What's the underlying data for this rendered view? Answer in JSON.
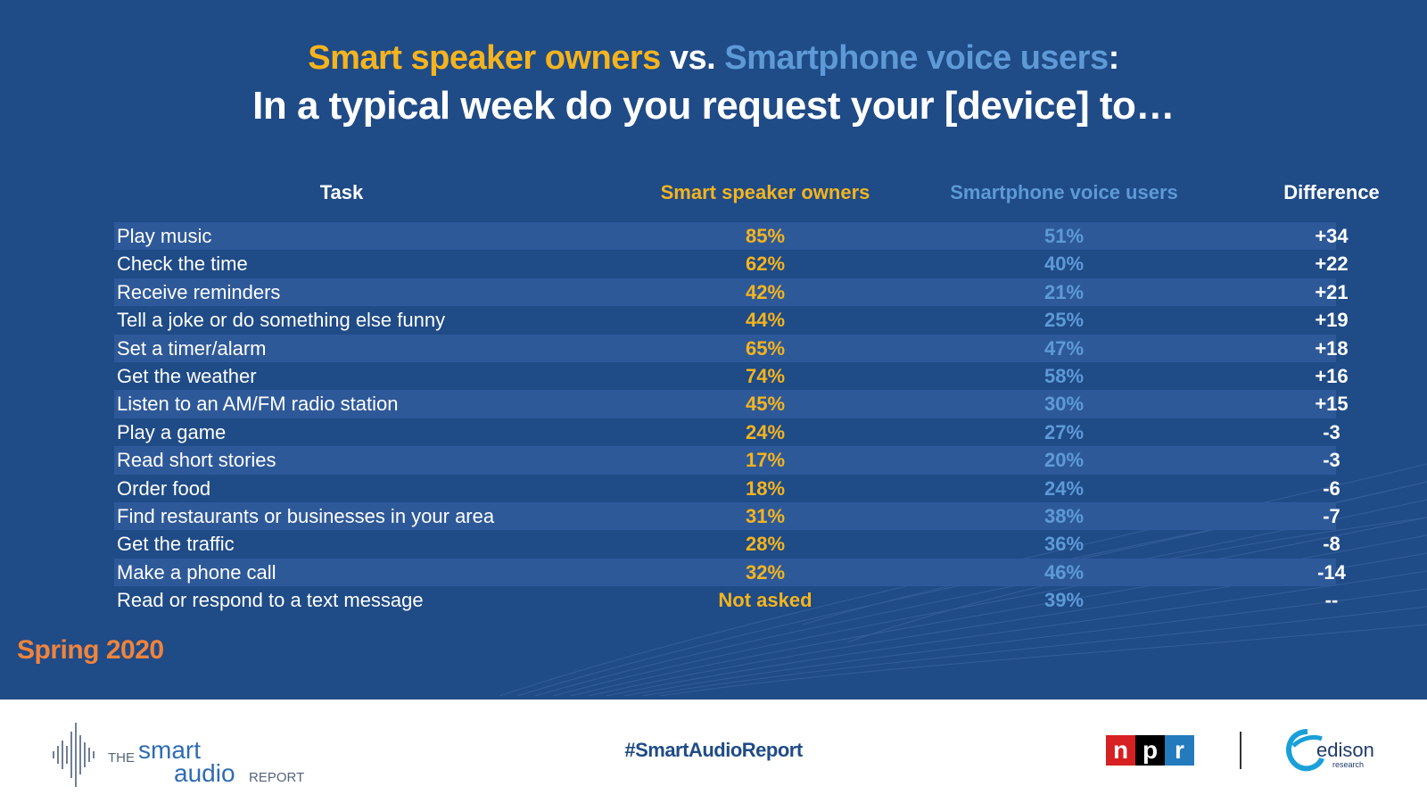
{
  "title": {
    "part1": "Smart speaker owners",
    "part2": " vs. ",
    "part3": "Smartphone voice users",
    "part4": ":",
    "line2": "In a typical week do you request your [device] to…"
  },
  "headers": {
    "task": "Task",
    "smart_speaker": "Smart speaker owners",
    "smartphone": "Smartphone voice users",
    "difference": "Difference"
  },
  "rows": [
    {
      "task": "Play music",
      "smart_speaker": "85%",
      "smartphone": "51%",
      "difference": "+34"
    },
    {
      "task": "Check the time",
      "smart_speaker": "62%",
      "smartphone": "40%",
      "difference": "+22"
    },
    {
      "task": "Receive reminders",
      "smart_speaker": "42%",
      "smartphone": "21%",
      "difference": "+21"
    },
    {
      "task": "Tell a joke or do something else funny",
      "smart_speaker": "44%",
      "smartphone": "25%",
      "difference": "+19"
    },
    {
      "task": "Set a timer/alarm",
      "smart_speaker": "65%",
      "smartphone": "47%",
      "difference": "+18"
    },
    {
      "task": "Get the weather",
      "smart_speaker": "74%",
      "smartphone": "58%",
      "difference": "+16"
    },
    {
      "task": "Listen to an AM/FM radio station",
      "smart_speaker": "45%",
      "smartphone": "30%",
      "difference": "+15"
    },
    {
      "task": "Play a game",
      "smart_speaker": "24%",
      "smartphone": "27%",
      "difference": "-3"
    },
    {
      "task": "Read short stories",
      "smart_speaker": "17%",
      "smartphone": "20%",
      "difference": "-3"
    },
    {
      "task": "Order food",
      "smart_speaker": "18%",
      "smartphone": "24%",
      "difference": "-6"
    },
    {
      "task": "Find restaurants or businesses in your area",
      "smart_speaker": "31%",
      "smartphone": "38%",
      "difference": "-7"
    },
    {
      "task": "Get the traffic",
      "smart_speaker": "28%",
      "smartphone": "36%",
      "difference": "-8"
    },
    {
      "task": "Make a phone call",
      "smart_speaker": "32%",
      "smartphone": "46%",
      "difference": "-14"
    },
    {
      "task": "Read or respond to a text message",
      "smart_speaker": "Not asked",
      "smartphone": "39%",
      "difference": "--"
    }
  ],
  "season": "Spring 2020",
  "footer": {
    "logo_the": "THE",
    "logo_smart": "smart",
    "logo_audio": "audio",
    "logo_report": "REPORT",
    "hashtag": "#SmartAudioReport",
    "npr_n": "n",
    "npr_p": "p",
    "npr_r": "r",
    "edison": "edison",
    "edison_sub": "research"
  },
  "colors": {
    "background": "#1f4b87",
    "stripe": "#2e5999",
    "smart_speaker": "#f5b41d",
    "smartphone": "#5d9ad6",
    "season": "#f0843c"
  }
}
